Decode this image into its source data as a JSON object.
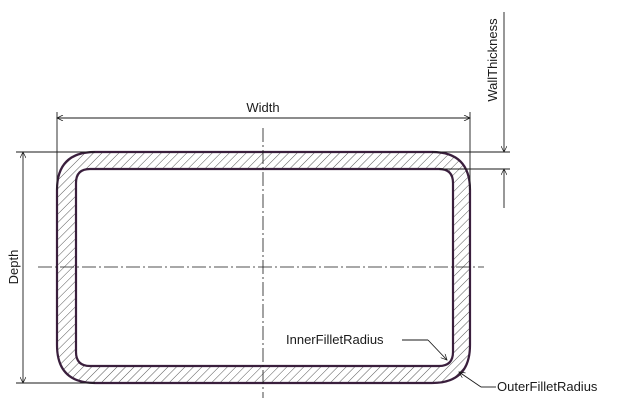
{
  "labels": {
    "width": "Width",
    "depth": "Depth",
    "wall_thickness": "WallThickness",
    "inner_fillet_radius": "InnerFilletRadius",
    "outer_fillet_radius": "OuterFilletRadius"
  },
  "colors": {
    "outline": "#3a1f3d",
    "line": "#1a1a1a",
    "hatch": "#444444",
    "background": "#ffffff"
  }
}
